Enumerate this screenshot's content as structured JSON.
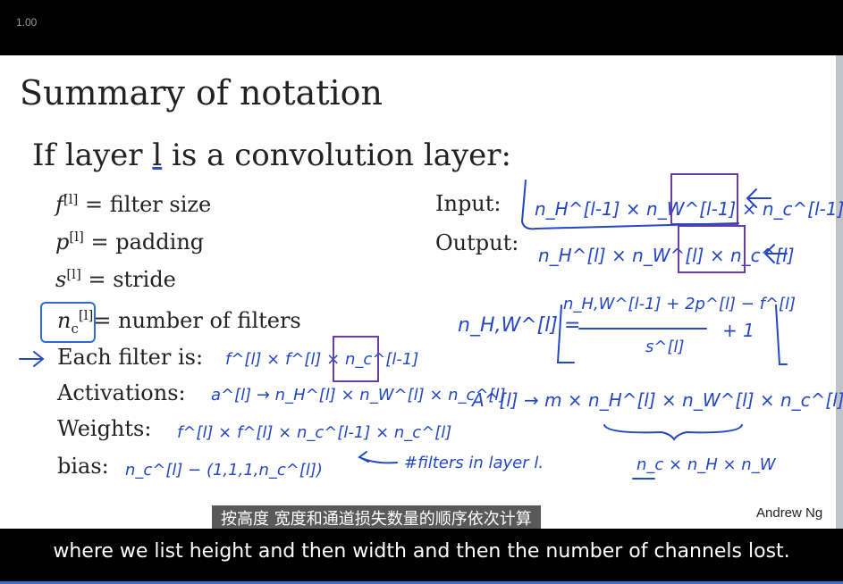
{
  "player": {
    "speed": "1.00"
  },
  "slide": {
    "title": "Summary of notation",
    "headline_pre": "If layer ",
    "headline_l": "l",
    "headline_post": " is a convolution layer:",
    "rows": {
      "filter": {
        "sym": "f",
        "sup": "[l]",
        "text": " = filter size"
      },
      "padding": {
        "sym": "p",
        "sup": "[l]",
        "text": " = padding"
      },
      "stride": {
        "sym": "s",
        "sup": "[l]",
        "text": " = stride"
      },
      "nfilters": {
        "sym": "n",
        "sub": "c",
        "sup": "[l]",
        "text": "= number of filters"
      },
      "each": "Each filter is:",
      "activations": "Activations:",
      "weights": "Weights:",
      "bias": "bias:",
      "input": "Input:",
      "output": "Output:"
    },
    "handwriting": {
      "input_dims": "n_H^[l-1] × n_W^[l-1] × n_c^[l-1]",
      "output_dims": "n_H^[l] × n_W^[l] × n_c^[l]",
      "formula_lhs": "n_H,W^[l] =",
      "formula_num": "n_H,W^[l-1] + 2p^[l] − f^[l]",
      "formula_den": "s^[l]",
      "formula_tail": "+ 1",
      "each_dims": "f^[l] × f^[l] × n_c^[l-1]",
      "act_dims": "a^[l] → n_H^[l] × n_W^[l] × n_c^[l]",
      "big_act": "A^[l] → m × n_H^[l] × n_W^[l] × n_c^[l]",
      "weight_dims": "f^[l] × f^[l] × n_c^[l-1] × n_c^[l]",
      "bias_dims": "n_c^[l] − (1,1,1,n_c^[l])",
      "note": "#filters in layer l.",
      "order": "n_c × n_H × n_W"
    },
    "author": "Andrew Ng"
  },
  "subtitles": {
    "chinese": "按高度 宽度和通道损失数量的顺序依次计算",
    "english": "where we list height and then width and then the number of channels lost."
  },
  "colors": {
    "ink": "#2447c4",
    "box": "#6a3ea6",
    "accent": "#3b6fc4"
  }
}
